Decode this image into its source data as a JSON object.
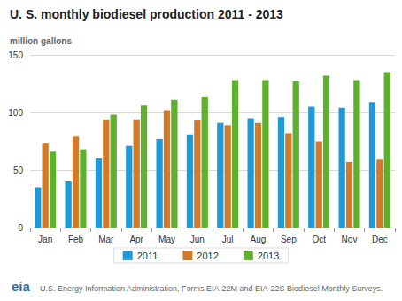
{
  "chart_data": {
    "type": "bar",
    "title": "U. S. monthly biodiesel production 2011 - 2013",
    "y_label": "million gallons",
    "source": "U.S. Energy Information Administration, Forms EIA-22M and EIA-22S Biodiesel Monthly Surveys.",
    "logo": "eia",
    "categories": [
      "Jan",
      "Feb",
      "Mar",
      "Apr",
      "May",
      "Jun",
      "Jul",
      "Aug",
      "Sep",
      "Oct",
      "Nov",
      "Dec"
    ],
    "series": [
      {
        "name": "2011",
        "color": "#1f9ad8",
        "values": [
          35,
          40,
          60,
          71,
          77,
          81,
          91,
          95,
          96,
          105,
          104,
          109
        ]
      },
      {
        "name": "2012",
        "color": "#d07a2c",
        "values": [
          73,
          79,
          94,
          94,
          102,
          93,
          89,
          91,
          82,
          75,
          57,
          59
        ]
      },
      {
        "name": "2013",
        "color": "#5fb02e",
        "values": [
          66,
          68,
          98,
          106,
          111,
          113,
          128,
          128,
          127,
          132,
          128,
          135
        ]
      }
    ],
    "ylim": [
      0,
      150
    ],
    "yticks": [
      0,
      50,
      100,
      150
    ],
    "grid": true,
    "legend": "bottom"
  }
}
